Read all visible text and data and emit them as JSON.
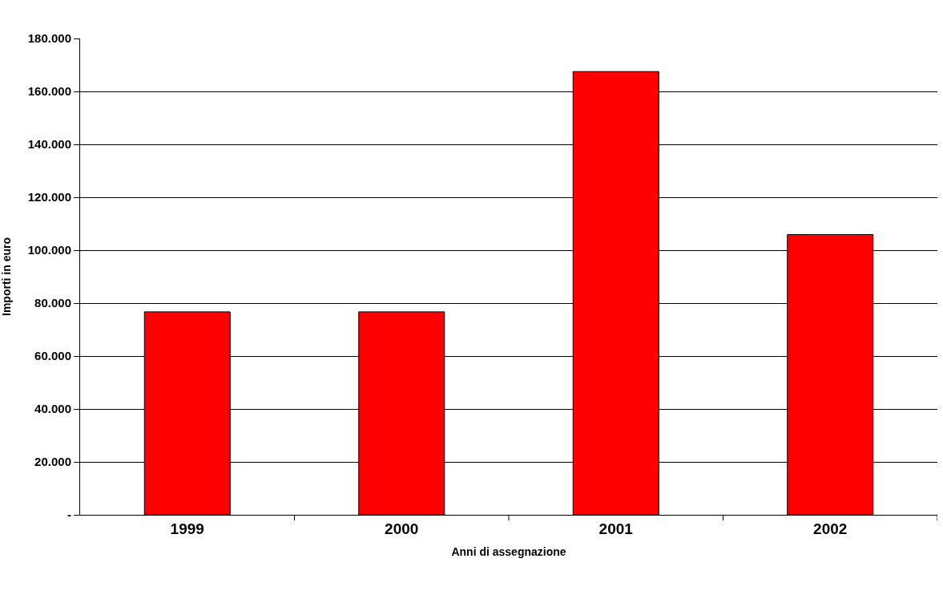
{
  "chart_data": {
    "type": "bar",
    "xlabel": "Anni di assegnazione",
    "ylabel": "Importi in euro",
    "categories": [
      "1999",
      "2000",
      "2001",
      "2002"
    ],
    "values": [
      76700,
      76700,
      167500,
      105900
    ],
    "color": "#ff0000",
    "ylim": [
      0,
      180000
    ],
    "yticks": [
      {
        "value": 0,
        "label": "-"
      },
      {
        "value": 20000,
        "label": "20.000"
      },
      {
        "value": 40000,
        "label": "40.000"
      },
      {
        "value": 60000,
        "label": "60.000"
      },
      {
        "value": 80000,
        "label": "80.000"
      },
      {
        "value": 100000,
        "label": "100.000"
      },
      {
        "value": 120000,
        "label": "120.000"
      },
      {
        "value": 140000,
        "label": "140.000"
      },
      {
        "value": 160000,
        "label": "160.000"
      },
      {
        "value": 180000,
        "label": "180.000"
      }
    ],
    "grid": "y"
  }
}
